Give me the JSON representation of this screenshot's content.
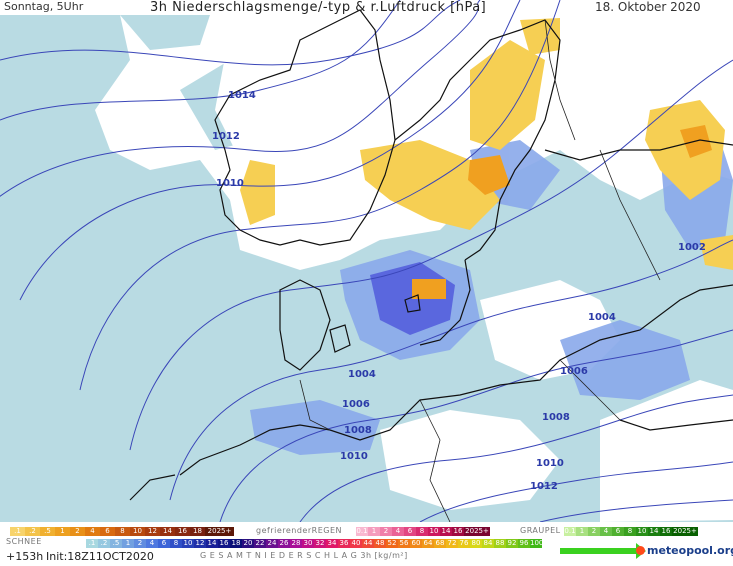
{
  "header": {
    "time_label": "Sonntag, 5Uhr",
    "title": "3h Niederschlagsmenge/-typ & r.Luftdruck [hPa]",
    "date": "18. Oktober 2020"
  },
  "isobar_labels": [
    "1014",
    "1012",
    "1010",
    "1002",
    "1004",
    "1004",
    "1006",
    "1006",
    "1008",
    "1008",
    "1010",
    "1010",
    "1012"
  ],
  "legend": {
    "rain_values": [
      ".1",
      ".2",
      ".5",
      "1",
      "2",
      "4",
      "6",
      "8",
      "10",
      "12",
      "14",
      "16",
      "18",
      "2025+"
    ],
    "freezing_rain_title": "gefrierenderREGEN",
    "freezing_rain_values": [
      "0.1",
      "1",
      "2",
      "4",
      "6",
      "8",
      "10",
      "14",
      "16",
      "2025+"
    ],
    "graupel_title": "GRAUPEL",
    "graupel_values": [
      "0.1",
      "1",
      "2",
      "4",
      "6",
      "8",
      "10",
      "14",
      "16",
      "2025+"
    ],
    "snow_title": "SCHNEE",
    "snow_values": [
      ".1",
      ".2",
      ".5",
      "1",
      "2",
      "4",
      "6",
      "8",
      "10",
      "12",
      "14",
      "16",
      "18",
      "20",
      "22",
      "24",
      "26",
      "28",
      "30",
      "32",
      "34",
      "36",
      "40",
      "44",
      "48",
      "52",
      "56",
      "60",
      "64",
      "68",
      "72",
      "76",
      "80",
      "84",
      "88",
      "92",
      "96",
      "100"
    ],
    "total_title": "G E S A M T N I E D E R S C H L A G   3h   [kg/m²]"
  },
  "footer": {
    "forecast_step": "+153h",
    "init": "Init:18Z11OCT2020",
    "logo": "meteopool.org"
  },
  "colors": {
    "sea_shading": "#c2dce6",
    "precip_light": "#a6d4de",
    "precip_blue": "#7fa3e8",
    "precip_dark_blue": "#4b5de0",
    "snow_orange": "#f2a51f",
    "snow_yellow": "#f7d25a",
    "isobar": "#3a46b8",
    "coastline": "#111111"
  }
}
